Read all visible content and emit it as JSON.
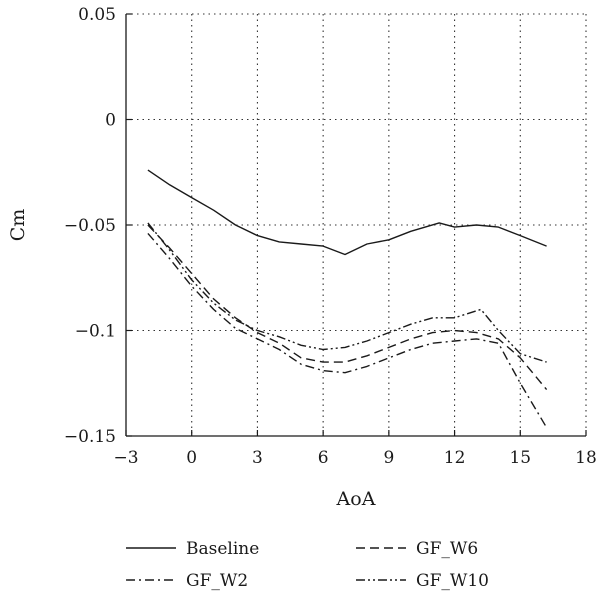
{
  "chart_data": {
    "type": "line",
    "xlabel": "AoA",
    "ylabel": "Cm",
    "xlim": [
      -3,
      18
    ],
    "ylim": [
      -0.15,
      0.05
    ],
    "xticks": [
      -3,
      0,
      3,
      6,
      9,
      12,
      15,
      18
    ],
    "xtick_labels": [
      "−3",
      "0",
      "3",
      "6",
      "9",
      "12",
      "15",
      "18"
    ],
    "yticks": [
      0.05,
      0,
      -0.05,
      -0.1,
      -0.15
    ],
    "ytick_labels": [
      "0.05",
      "0",
      "−0.05",
      "−0.1",
      "−0.15"
    ],
    "grid": true,
    "legend_position": "bottom",
    "series": [
      {
        "name": "Baseline",
        "dash": "solid",
        "x": [
          -2,
          -1,
          0,
          1,
          2,
          3,
          4,
          5,
          6,
          7,
          8,
          9,
          10,
          11.3,
          12,
          13,
          14,
          15,
          16.2
        ],
        "y": [
          -0.024,
          -0.031,
          -0.037,
          -0.043,
          -0.05,
          -0.055,
          -0.058,
          -0.059,
          -0.06,
          -0.064,
          -0.059,
          -0.057,
          -0.053,
          -0.049,
          -0.051,
          -0.05,
          -0.051,
          -0.055,
          -0.06
        ]
      },
      {
        "name": "GF_W6",
        "dash": "dashed",
        "x": [
          -2,
          -1,
          0,
          1,
          2,
          3,
          4,
          5,
          6,
          7,
          8,
          9,
          10,
          11,
          12,
          13,
          14,
          15,
          16.2
        ],
        "y": [
          -0.05,
          -0.061,
          -0.073,
          -0.085,
          -0.094,
          -0.101,
          -0.106,
          -0.113,
          -0.115,
          -0.115,
          -0.112,
          -0.108,
          -0.104,
          -0.101,
          -0.1,
          -0.101,
          -0.104,
          -0.113,
          -0.128
        ]
      },
      {
        "name": "GF_W2",
        "dash": "dashdot",
        "x": [
          -2,
          -1,
          0,
          1,
          2,
          3,
          4,
          5,
          6,
          7,
          8,
          9,
          10,
          11,
          12,
          13,
          14,
          15,
          16.2
        ],
        "y": [
          -0.054,
          -0.066,
          -0.079,
          -0.09,
          -0.099,
          -0.104,
          -0.109,
          -0.116,
          -0.119,
          -0.12,
          -0.117,
          -0.113,
          -0.109,
          -0.106,
          -0.105,
          -0.104,
          -0.106,
          -0.125,
          -0.146
        ]
      },
      {
        "name": "GF_W10",
        "dash": "dashdotdot",
        "x": [
          -2,
          -1,
          0,
          1,
          2,
          3,
          4,
          5,
          6,
          7,
          8,
          9,
          10,
          11,
          12,
          13.2,
          14,
          15,
          16.2
        ],
        "y": [
          -0.049,
          -0.062,
          -0.076,
          -0.087,
          -0.095,
          -0.1,
          -0.103,
          -0.107,
          -0.109,
          -0.108,
          -0.105,
          -0.101,
          -0.097,
          -0.094,
          -0.094,
          -0.09,
          -0.1,
          -0.111,
          -0.115
        ]
      }
    ],
    "legend_order": [
      "Baseline",
      "GF_W6",
      "GF_W2",
      "GF_W10"
    ]
  }
}
